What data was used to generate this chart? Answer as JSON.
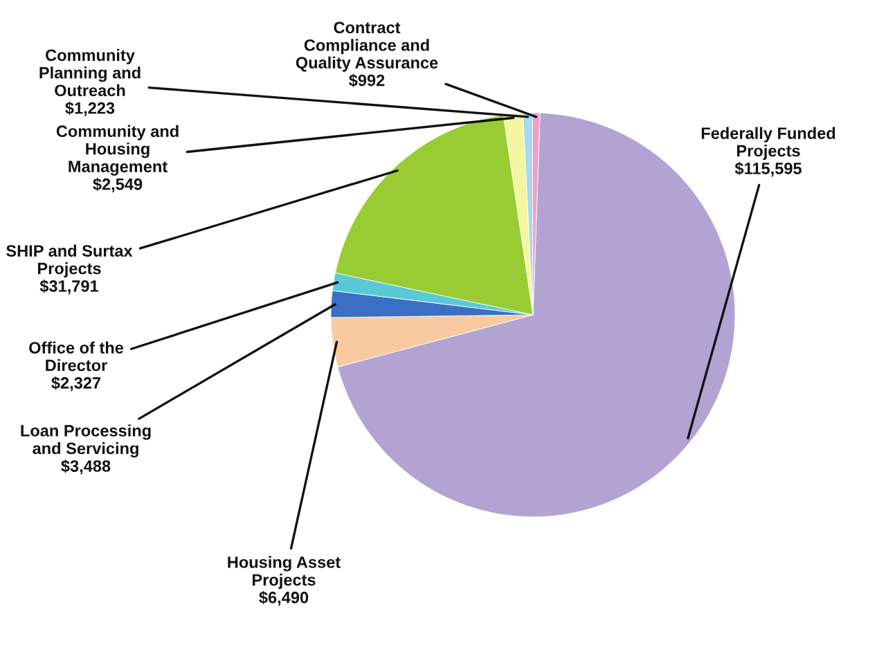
{
  "chart_data": {
    "type": "pie",
    "categories": [
      "Federally Funded Projects",
      "Housing Asset Projects",
      "Loan Processing and Servicing",
      "Office of the Director",
      "SHIP and Surtax Projects",
      "Community and Housing Management",
      "Community Planning and Outreach",
      "Contract Compliance and Quality Assurance"
    ],
    "values": [
      115595,
      6490,
      3488,
      2327,
      31791,
      2549,
      1223,
      992
    ],
    "colors": [
      "#b3a3d3",
      "#f9caa0",
      "#3a6fc4",
      "#5bc8d8",
      "#99cc33",
      "#f5f5a0",
      "#a8d8ee",
      "#f0a0c8"
    ],
    "value_labels": [
      "$115,595",
      "$6,490",
      "$3,488",
      "$2,327",
      "$31,791",
      "$2,549",
      "$1,223",
      "$992"
    ]
  }
}
